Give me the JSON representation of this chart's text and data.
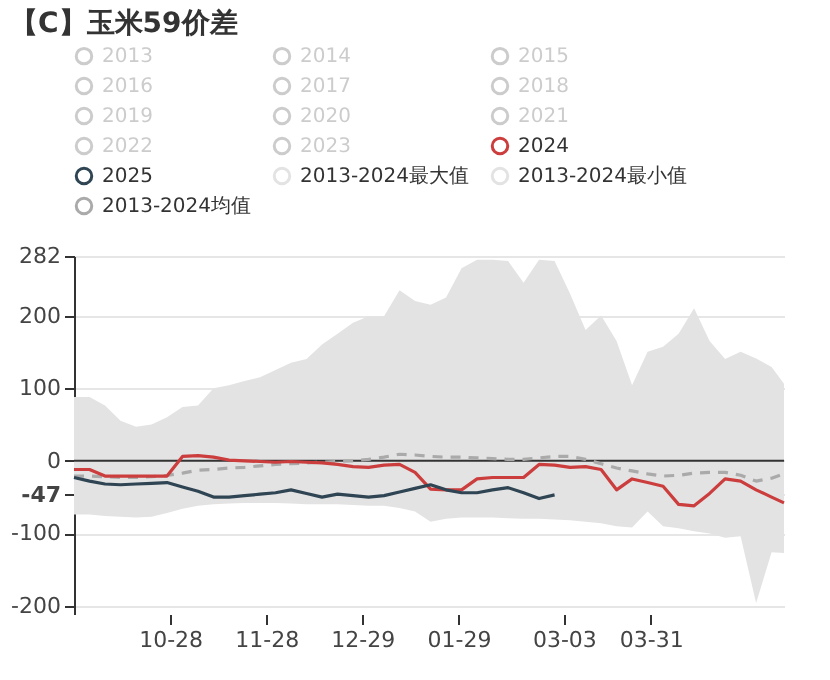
{
  "chart_data": {
    "type": "line",
    "title": "【C】玉米59价差",
    "x": [
      "2023-09-27",
      "2023-10-02",
      "2023-10-07",
      "2023-10-12",
      "2023-10-17",
      "2023-10-22",
      "2023-10-27",
      "2023-11-01",
      "2023-11-06",
      "2023-11-11",
      "2023-11-16",
      "2023-11-21",
      "2023-11-26",
      "2023-12-01",
      "2023-12-06",
      "2023-12-11",
      "2023-12-16",
      "2023-12-21",
      "2023-12-26",
      "2023-12-31",
      "2024-01-05",
      "2024-01-10",
      "2024-01-15",
      "2024-01-20",
      "2024-01-25",
      "2024-01-30",
      "2024-02-04",
      "2024-02-09",
      "2024-02-14",
      "2024-02-19",
      "2024-02-24",
      "2024-02-29",
      "2024-03-05",
      "2024-03-10",
      "2024-03-15",
      "2024-03-20",
      "2024-03-25",
      "2024-03-30",
      "2024-04-04",
      "2024-04-09",
      "2024-04-14",
      "2024-04-19",
      "2024-04-24",
      "2024-04-29",
      "2024-05-04",
      "2024-05-09",
      "2024-05-13"
    ],
    "series": [
      {
        "name": "2013",
        "color": "#cccccc",
        "values": [
          null,
          null,
          null,
          null,
          null,
          null,
          null,
          null,
          null,
          null,
          null,
          null,
          null,
          null,
          null,
          null,
          null,
          null,
          null,
          null,
          null,
          null,
          null,
          null,
          null,
          null,
          null,
          null,
          null,
          null,
          null,
          null,
          null,
          null,
          null,
          null,
          null,
          null,
          null,
          null,
          null,
          null,
          null,
          null,
          null,
          null,
          null
        ]
      },
      {
        "name": "2014",
        "color": "#cccccc",
        "values": [
          null,
          null,
          null,
          null,
          null,
          null,
          null,
          null,
          null,
          null,
          null,
          null,
          null,
          null,
          null,
          null,
          null,
          null,
          null,
          null,
          null,
          null,
          null,
          null,
          null,
          null,
          null,
          null,
          null,
          null,
          null,
          null,
          null,
          null,
          null,
          null,
          null,
          null,
          null,
          null,
          null,
          null,
          null,
          null,
          null,
          null,
          null
        ]
      },
      {
        "name": "2015",
        "color": "#cccccc",
        "values": [
          null,
          null,
          null,
          null,
          null,
          null,
          null,
          null,
          null,
          null,
          null,
          null,
          null,
          null,
          null,
          null,
          null,
          null,
          null,
          null,
          null,
          null,
          null,
          null,
          null,
          null,
          null,
          null,
          null,
          null,
          null,
          null,
          null,
          null,
          null,
          null,
          null,
          null,
          null,
          null,
          null,
          null,
          null,
          null,
          null,
          null,
          null
        ]
      },
      {
        "name": "2016",
        "color": "#cccccc",
        "values": [
          null,
          null,
          null,
          null,
          null,
          null,
          null,
          null,
          null,
          null,
          null,
          null,
          null,
          null,
          null,
          null,
          null,
          null,
          null,
          null,
          null,
          null,
          null,
          null,
          null,
          null,
          null,
          null,
          null,
          null,
          null,
          null,
          null,
          null,
          null,
          null,
          null,
          null,
          null,
          null,
          null,
          null,
          null,
          null,
          null,
          null,
          null
        ]
      },
      {
        "name": "2017",
        "color": "#cccccc",
        "values": [
          null,
          null,
          null,
          null,
          null,
          null,
          null,
          null,
          null,
          null,
          null,
          null,
          null,
          null,
          null,
          null,
          null,
          null,
          null,
          null,
          null,
          null,
          null,
          null,
          null,
          null,
          null,
          null,
          null,
          null,
          null,
          null,
          null,
          null,
          null,
          null,
          null,
          null,
          null,
          null,
          null,
          null,
          null,
          null,
          null,
          null,
          null
        ]
      },
      {
        "name": "2018",
        "color": "#cccccc",
        "values": [
          null,
          null,
          null,
          null,
          null,
          null,
          null,
          null,
          null,
          null,
          null,
          null,
          null,
          null,
          null,
          null,
          null,
          null,
          null,
          null,
          null,
          null,
          null,
          null,
          null,
          null,
          null,
          null,
          null,
          null,
          null,
          null,
          null,
          null,
          null,
          null,
          null,
          null,
          null,
          null,
          null,
          null,
          null,
          null,
          null,
          null,
          null
        ]
      },
      {
        "name": "2019",
        "color": "#cccccc",
        "values": [
          null,
          null,
          null,
          null,
          null,
          null,
          null,
          null,
          null,
          null,
          null,
          null,
          null,
          null,
          null,
          null,
          null,
          null,
          null,
          null,
          null,
          null,
          null,
          null,
          null,
          null,
          null,
          null,
          null,
          null,
          null,
          null,
          null,
          null,
          null,
          null,
          null,
          null,
          null,
          null,
          null,
          null,
          null,
          null,
          null,
          null,
          null
        ]
      },
      {
        "name": "2020",
        "color": "#cccccc",
        "values": [
          null,
          null,
          null,
          null,
          null,
          null,
          null,
          null,
          null,
          null,
          null,
          null,
          null,
          null,
          null,
          null,
          null,
          null,
          null,
          null,
          null,
          null,
          null,
          null,
          null,
          null,
          null,
          null,
          null,
          null,
          null,
          null,
          null,
          null,
          null,
          null,
          null,
          null,
          null,
          null,
          null,
          null,
          null,
          null,
          null,
          null,
          null
        ]
      },
      {
        "name": "2021",
        "color": "#cccccc",
        "values": [
          null,
          null,
          null,
          null,
          null,
          null,
          null,
          null,
          null,
          null,
          null,
          null,
          null,
          null,
          null,
          null,
          null,
          null,
          null,
          null,
          null,
          null,
          null,
          null,
          null,
          null,
          null,
          null,
          null,
          null,
          null,
          null,
          null,
          null,
          null,
          null,
          null,
          null,
          null,
          null,
          null,
          null,
          null,
          null,
          null,
          null,
          null
        ]
      },
      {
        "name": "2022",
        "color": "#cccccc",
        "values": [
          null,
          null,
          null,
          null,
          null,
          null,
          null,
          null,
          null,
          null,
          null,
          null,
          null,
          null,
          null,
          null,
          null,
          null,
          null,
          null,
          null,
          null,
          null,
          null,
          null,
          null,
          null,
          null,
          null,
          null,
          null,
          null,
          null,
          null,
          null,
          null,
          null,
          null,
          null,
          null,
          null,
          null,
          null,
          null,
          null,
          null,
          null
        ]
      },
      {
        "name": "2023",
        "color": "#cccccc",
        "values": [
          null,
          null,
          null,
          null,
          null,
          null,
          null,
          null,
          null,
          null,
          null,
          null,
          null,
          null,
          null,
          null,
          null,
          null,
          null,
          null,
          null,
          null,
          null,
          null,
          null,
          null,
          null,
          null,
          null,
          null,
          null,
          null,
          null,
          null,
          null,
          null,
          null,
          null,
          null,
          null,
          null,
          null,
          null,
          null,
          null,
          null,
          null
        ]
      },
      {
        "name": "2024",
        "color": "#cc3d3d",
        "values": [
          -12,
          -12,
          -21,
          -21,
          -21,
          -21,
          -21,
          6,
          7,
          5,
          1,
          0,
          -1,
          -2,
          -1,
          -2,
          -3,
          -5,
          -8,
          -9,
          -6,
          -5,
          -16,
          -39,
          -40,
          -40,
          -25,
          -23,
          -23,
          -23,
          -5,
          -6,
          -9,
          -8,
          -12,
          -40,
          -25,
          -30,
          -35,
          -60,
          -62,
          -45,
          -25,
          -28,
          -40,
          -50,
          -58
        ]
      },
      {
        "name": "2025",
        "color": "#2f4554",
        "values": [
          -23,
          -28,
          -32,
          -33,
          -32,
          -31,
          -30,
          -36,
          -42,
          -50,
          -50,
          -48,
          -46,
          -44,
          -40,
          -45,
          -50,
          -46,
          -48,
          -50,
          -48,
          -43,
          -38,
          -33,
          -40,
          -44,
          -44,
          -40,
          -37,
          -44,
          -52,
          -47,
          null,
          null,
          null,
          null,
          null,
          null,
          null,
          null,
          null,
          null,
          null,
          null,
          null,
          null,
          null
        ]
      },
      {
        "name": "2013-2024最大值",
        "type": "area",
        "color": "#e3e3e3",
        "values": [
          88,
          88,
          76,
          55,
          47,
          50,
          60,
          74,
          76,
          100,
          104,
          110,
          115,
          125,
          135,
          140,
          160,
          175,
          190,
          199,
          199,
          235,
          220,
          215,
          225,
          265,
          277,
          277,
          275,
          245,
          277,
          275,
          230,
          180,
          200,
          165,
          104,
          150,
          157,
          175,
          210,
          165,
          140,
          150,
          141,
          129,
          106
        ]
      },
      {
        "name": "2013-2024最小值",
        "type": "area",
        "color": "#e3e3e3",
        "values": [
          -74,
          -74,
          -76,
          -77,
          -78,
          -77,
          -72,
          -66,
          -62,
          -60,
          -59,
          -58,
          -58,
          -58,
          -59,
          -60,
          -60,
          -60,
          -61,
          -62,
          -62,
          -65,
          -70,
          -84,
          -80,
          -78,
          -78,
          -78,
          -79,
          -80,
          -80,
          -81,
          -82,
          -84,
          -86,
          -90,
          -92,
          -70,
          -90,
          -93,
          -97,
          -100,
          -106,
          -104,
          -196,
          -126,
          -127
        ]
      },
      {
        "name": "2013-2024均值",
        "color": "#aaaaaa",
        "line_style": "dashed",
        "values": [
          -21,
          -21,
          -22,
          -23,
          -23,
          -22,
          -20,
          -17,
          -13,
          -12,
          -10,
          -9,
          -7,
          -5,
          -4,
          -3,
          -2,
          -1,
          0,
          2,
          5,
          9,
          8,
          6,
          5,
          5,
          4,
          3,
          2,
          2,
          4,
          6,
          6,
          2,
          -4,
          -10,
          -14,
          -18,
          -21,
          -20,
          -17,
          -16,
          -16,
          -20,
          -28,
          -24,
          -18
        ]
      }
    ],
    "xlim": [
      "2023-09-27",
      "2024-05-13"
    ],
    "xticks": [
      {
        "value": "2023-10-28",
        "label": "10-28"
      },
      {
        "value": "2023-11-28",
        "label": "11-28"
      },
      {
        "value": "2023-12-29",
        "label": "12-29"
      },
      {
        "value": "2024-01-29",
        "label": "01-29"
      },
      {
        "value": "2024-03-03",
        "label": "03-03"
      },
      {
        "value": "2024-03-31",
        "label": "03-31"
      }
    ],
    "ylim": [
      -211,
      282
    ],
    "yticks": [
      -200,
      -100,
      {
        "value": -47,
        "label": "-47"
      },
      0,
      100,
      200,
      282
    ],
    "ref_lines": [
      {
        "axis": "y",
        "value": 0,
        "color": "#333333"
      }
    ],
    "grid": "y",
    "legend": "top",
    "marker": "none",
    "line_style": "solid"
  }
}
